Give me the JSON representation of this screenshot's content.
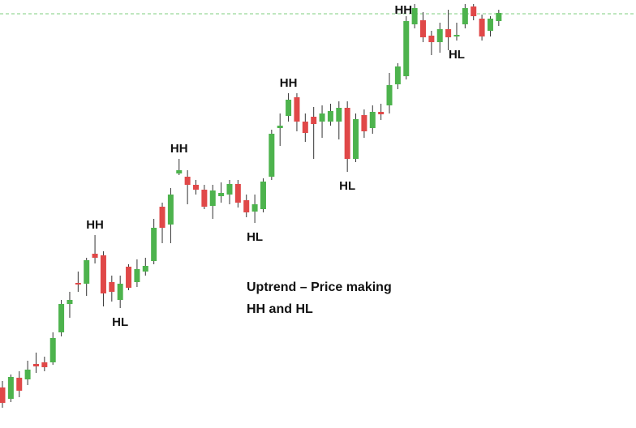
{
  "chart_data": {
    "type": "candlestick",
    "up_color": "#4db34d",
    "down_color": "#e04848",
    "ylim": [
      0,
      528
    ],
    "reference_line": 511,
    "reference_color": "#7fcf7f",
    "text": [
      "Uptrend – Price making",
      "HH and HL"
    ],
    "annotations": [
      {
        "label": "HH",
        "index": 11,
        "position": "above"
      },
      {
        "label": "HL",
        "index": 14,
        "position": "below"
      },
      {
        "label": "HH",
        "index": 21,
        "position": "above"
      },
      {
        "label": "HL",
        "index": 30,
        "position": "below"
      },
      {
        "label": "HH",
        "index": 34,
        "position": "above"
      },
      {
        "label": "HL",
        "index": 41,
        "position": "below"
      },
      {
        "label": "HH",
        "index": 49,
        "position": "left"
      },
      {
        "label": "HL",
        "index": 54,
        "position": "below"
      }
    ],
    "open": [
      50,
      36,
      62,
      60,
      79,
      81,
      81,
      118,
      153,
      179,
      178,
      215,
      213,
      180,
      158,
      199,
      180,
      193,
      206,
      273,
      251,
      314,
      310,
      300,
      294,
      274,
      286,
      288,
      301,
      281,
      267,
      270,
      310,
      370,
      385,
      408,
      378,
      384,
      378,
      378,
      378,
      395,
      332,
      386,
      370,
      390,
      398,
      424,
      434,
      498,
      503,
      484,
      476,
      492,
      483,
      498,
      520,
      505,
      490,
      502
    ],
    "high": [
      58,
      66,
      70,
      83,
      93,
      88,
      118,
      158,
      168,
      193,
      210,
      238,
      218,
      188,
      188,
      202,
      208,
      210,
      258,
      278,
      296,
      332,
      318,
      306,
      300,
      300,
      303,
      306,
      306,
      288,
      288,
      308,
      368,
      388,
      413,
      413,
      388,
      396,
      398,
      400,
      403,
      403,
      388,
      393,
      398,
      400,
      438,
      450,
      508,
      523,
      513,
      490,
      500,
      516,
      500,
      523,
      523,
      510,
      508,
      516
    ],
    "low": [
      25,
      32,
      38,
      53,
      68,
      70,
      78,
      113,
      136,
      168,
      163,
      203,
      150,
      156,
      148,
      170,
      174,
      188,
      202,
      228,
      228,
      312,
      276,
      288,
      270,
      258,
      278,
      276,
      272,
      260,
      253,
      266,
      306,
      348,
      378,
      366,
      353,
      332,
      358,
      373,
      356,
      316,
      328,
      358,
      363,
      380,
      388,
      418,
      430,
      493,
      476,
      460,
      463,
      466,
      478,
      493,
      503,
      478,
      483,
      496
    ],
    "close": [
      31,
      63,
      46,
      72,
      76,
      75,
      111,
      153,
      158,
      177,
      207,
      210,
      166,
      168,
      178,
      173,
      196,
      200,
      247,
      247,
      288,
      318,
      300,
      294,
      273,
      293,
      290,
      301,
      278,
      266,
      276,
      304,
      363,
      373,
      405,
      378,
      364,
      375,
      388,
      391,
      395,
      332,
      381,
      366,
      390,
      387,
      423,
      446,
      502,
      518,
      482,
      476,
      492,
      482,
      485,
      518,
      508,
      483,
      505,
      512
    ]
  }
}
